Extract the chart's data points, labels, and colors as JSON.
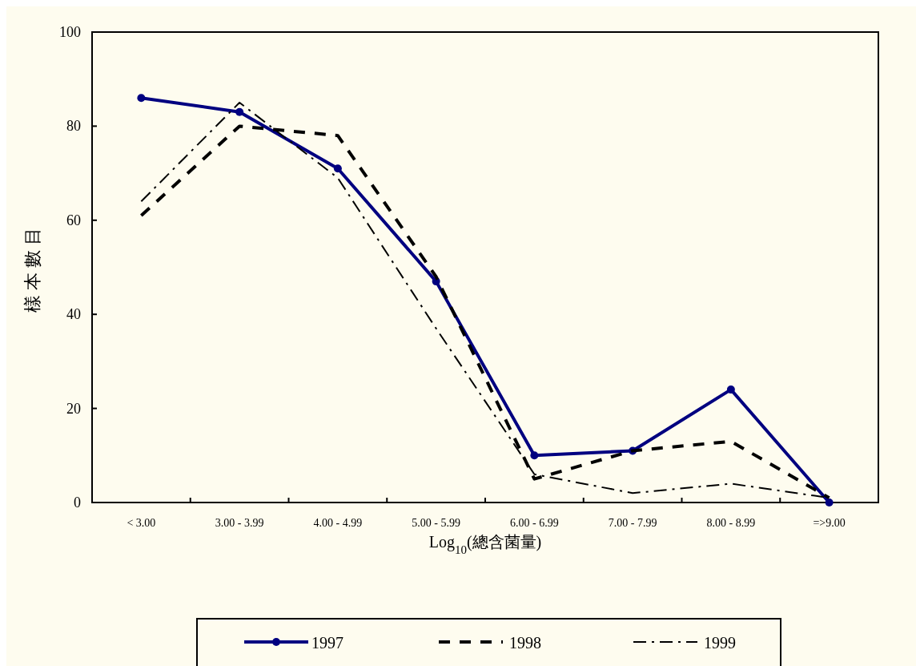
{
  "chart_data": {
    "type": "line",
    "xlabel": "Log$_{10}$(總含菌量)",
    "ylabel": "樣本數目",
    "categories": [
      "< 3.00",
      "3.00 - 3.99",
      "4.00 - 4.99",
      "5.00 - 5.99",
      "6.00 - 6.99",
      "7.00 - 7.99",
      "8.00 - 8.99",
      "=>9.00"
    ],
    "series": [
      {
        "name": "1997",
        "color": "#000080",
        "marker": "circle",
        "line_style": "solid",
        "values": [
          86,
          83,
          71,
          47,
          10,
          11,
          24,
          0
        ]
      },
      {
        "name": "1998",
        "color": "#000000",
        "marker": "none",
        "line_style": "dashed",
        "values": [
          61,
          80,
          78,
          48,
          5,
          11,
          13,
          1
        ]
      },
      {
        "name": "1999",
        "color": "#000000",
        "marker": "none",
        "line_style": "dashdot",
        "values": [
          64,
          85,
          69,
          37,
          6,
          2,
          4,
          1
        ]
      }
    ],
    "ylim": [
      0,
      100
    ],
    "yticks": [
      0,
      20,
      40,
      60,
      80,
      100
    ],
    "legend": "bottom"
  }
}
